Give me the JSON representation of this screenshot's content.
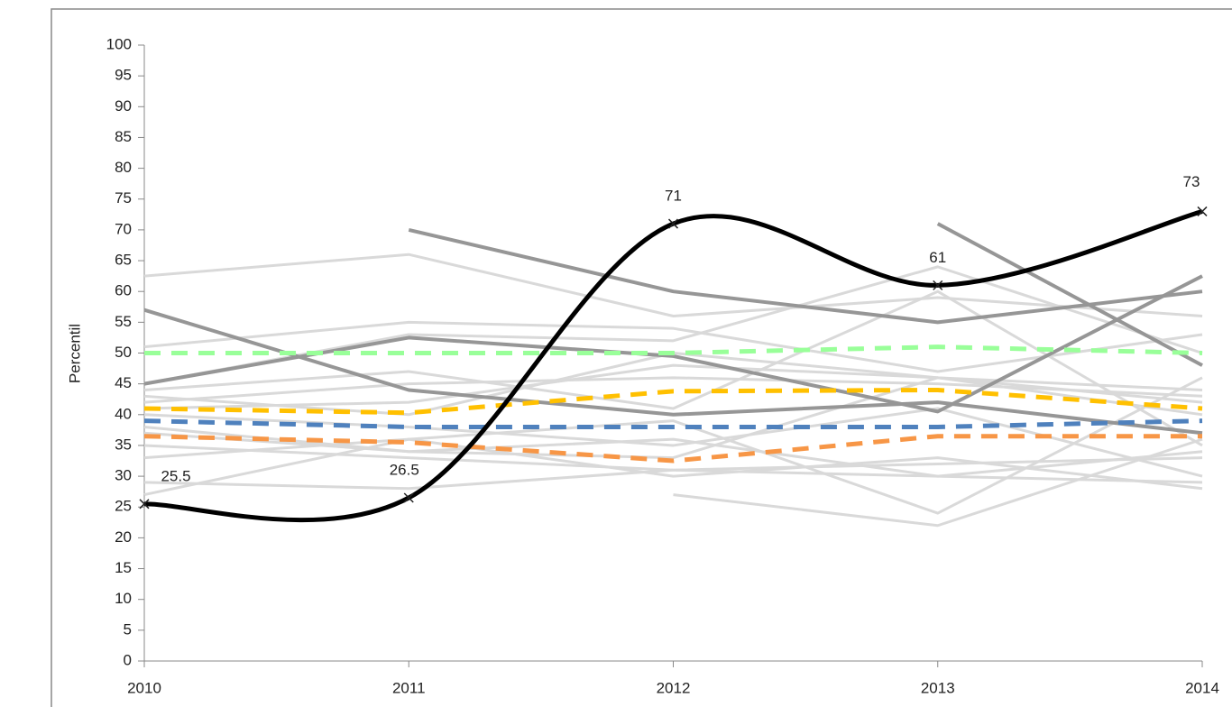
{
  "chart_data": {
    "type": "line",
    "y_label": "Percentil",
    "x": [
      2010,
      2011,
      2012,
      2013,
      2014
    ],
    "xlim": [
      2010,
      2014
    ],
    "xticks": [
      2010,
      2011,
      2012,
      2013,
      2014
    ],
    "ylim": [
      0,
      100
    ],
    "yticks": [
      0,
      5,
      10,
      15,
      20,
      25,
      30,
      35,
      40,
      45,
      50,
      55,
      60,
      65,
      70,
      75,
      80,
      85,
      90,
      95,
      100
    ],
    "grid": false,
    "series": [
      {
        "color": "#d9d9d9",
        "values": [
          62.5,
          66,
          56,
          59,
          56
        ]
      },
      {
        "color": "#d9d9d9",
        "values": [
          51,
          55,
          54,
          47,
          53
        ]
      },
      {
        "color": "#d9d9d9",
        "values": [
          45,
          53,
          52,
          64,
          50
        ]
      },
      {
        "color": "#d9d9d9",
        "values": [
          44,
          47,
          41,
          60,
          35
        ]
      },
      {
        "color": "#d9d9d9",
        "values": [
          43,
          40,
          50,
          46,
          44
        ]
      },
      {
        "color": "#d9d9d9",
        "values": [
          41,
          42,
          48,
          46,
          42
        ]
      },
      {
        "color": "#d9d9d9",
        "values": [
          40,
          38,
          35,
          41,
          30
        ]
      },
      {
        "color": "#d9d9d9",
        "values": [
          38,
          34,
          33,
          46,
          40
        ]
      },
      {
        "color": "#d9d9d9",
        "values": [
          35,
          33,
          31,
          30,
          34
        ]
      },
      {
        "color": "#d9d9d9",
        "values": [
          33,
          36,
          30,
          33,
          28
        ]
      },
      {
        "color": "#d9d9d9",
        "values": [
          29,
          28,
          31,
          32,
          33
        ]
      },
      {
        "color": "#d9d9d9",
        "values": [
          27,
          36,
          39,
          24,
          46
        ]
      },
      {
        "color": "#d9d9d9",
        "values": [
          null,
          null,
          27,
          22,
          36
        ]
      },
      {
        "color": "#d9d9d9",
        "values": [
          42,
          45,
          46,
          45,
          43
        ]
      },
      {
        "color": "#d9d9d9",
        "values": [
          37,
          34,
          36,
          30,
          29
        ]
      },
      {
        "color": "#969696",
        "values": [
          null,
          70,
          60,
          55,
          60
        ]
      },
      {
        "color": "#969696",
        "values": [
          57,
          44,
          40,
          42,
          37
        ]
      },
      {
        "color": "#969696",
        "values": [
          45,
          52.5,
          49.5,
          40.5,
          62.5
        ]
      },
      {
        "color": "#969696",
        "values": [
          null,
          null,
          null,
          71,
          48
        ]
      },
      {
        "color": "#99ff99",
        "dashed": true,
        "values": [
          50,
          50,
          50,
          51,
          50
        ]
      },
      {
        "color": "#ffc000",
        "dashed": true,
        "values": [
          41,
          40.3,
          43.8,
          44,
          41
        ]
      },
      {
        "color": "#4f81bd",
        "dashed": true,
        "values": [
          39,
          38,
          38,
          38,
          39
        ]
      },
      {
        "color": "#f79646",
        "dashed": true,
        "values": [
          36.5,
          35.5,
          32.5,
          36.5,
          36.5
        ]
      },
      {
        "color": "#000000",
        "smooth": true,
        "markers": true,
        "data_labels": true,
        "values": [
          25.5,
          26.5,
          71,
          61,
          73
        ]
      }
    ]
  }
}
